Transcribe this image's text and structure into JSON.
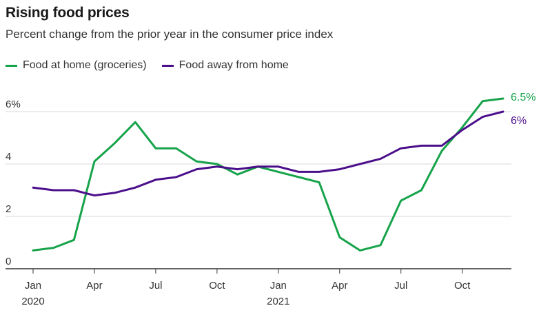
{
  "title": "Rising food prices",
  "subtitle": "Percent change from the prior year in the consumer price index",
  "colors": {
    "food_at_home": "#16a34a",
    "food_away": "#4b0f8c",
    "grid": "#d9d9d9",
    "axis": "#333333"
  },
  "chart_data": {
    "type": "line",
    "title": "Rising food prices",
    "subtitle": "Percent change from the prior year in the consumer price index",
    "xlabel": "",
    "ylabel": "",
    "ylim": [
      0,
      6
    ],
    "y_ticks": [
      {
        "value": 0,
        "label": "0"
      },
      {
        "value": 2,
        "label": "2"
      },
      {
        "value": 4,
        "label": "4"
      },
      {
        "value": 6,
        "label": "6%"
      }
    ],
    "x": [
      "2020-01",
      "2020-02",
      "2020-03",
      "2020-04",
      "2020-05",
      "2020-06",
      "2020-07",
      "2020-08",
      "2020-09",
      "2020-10",
      "2020-11",
      "2020-12",
      "2021-01",
      "2021-02",
      "2021-03",
      "2021-04",
      "2021-05",
      "2021-06",
      "2021-07",
      "2021-08",
      "2021-09",
      "2021-10",
      "2021-11",
      "2021-12"
    ],
    "x_ticks": [
      {
        "index": 0,
        "label": "Jan",
        "sublabel": "2020"
      },
      {
        "index": 3,
        "label": "Apr",
        "sublabel": ""
      },
      {
        "index": 6,
        "label": "Jul",
        "sublabel": ""
      },
      {
        "index": 9,
        "label": "Oct",
        "sublabel": ""
      },
      {
        "index": 12,
        "label": "Jan",
        "sublabel": "2021"
      },
      {
        "index": 15,
        "label": "Apr",
        "sublabel": ""
      },
      {
        "index": 18,
        "label": "Jul",
        "sublabel": ""
      },
      {
        "index": 21,
        "label": "Oct",
        "sublabel": ""
      }
    ],
    "grid": true,
    "legend_position": "top-left",
    "series": [
      {
        "name": "Food at home (groceries)",
        "color": "#16a34a",
        "end_label": "6.5%",
        "values": [
          0.7,
          0.8,
          1.1,
          4.1,
          4.8,
          5.6,
          4.6,
          4.6,
          4.1,
          4.0,
          3.6,
          3.9,
          3.7,
          3.5,
          3.3,
          1.2,
          0.7,
          0.9,
          2.6,
          3.0,
          4.5,
          5.4,
          6.4,
          6.5
        ]
      },
      {
        "name": "Food away from home",
        "color": "#4b0f8c",
        "end_label": "6%",
        "values": [
          3.1,
          3.0,
          3.0,
          2.8,
          2.9,
          3.1,
          3.4,
          3.5,
          3.8,
          3.9,
          3.8,
          3.9,
          3.9,
          3.7,
          3.7,
          3.8,
          4.0,
          4.2,
          4.6,
          4.7,
          4.7,
          5.3,
          5.8,
          6.0
        ]
      }
    ]
  }
}
